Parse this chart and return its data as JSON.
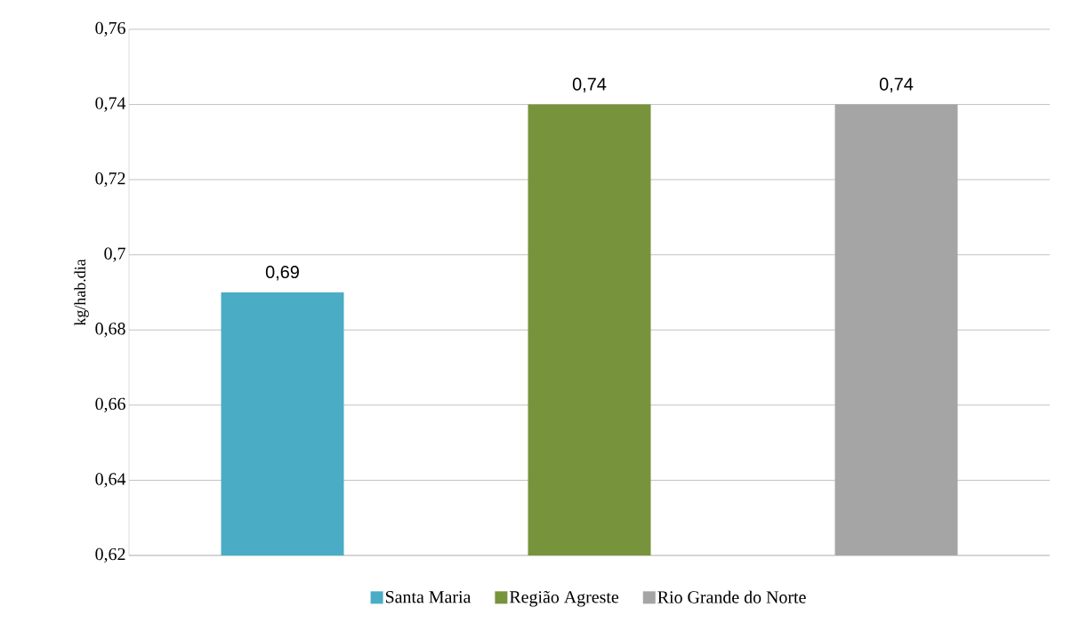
{
  "chart_data": {
    "type": "bar",
    "ylabel": "kg/hab.dia",
    "categories": [
      null,
      null,
      null
    ],
    "series": [
      {
        "name": "Santa Maria",
        "color": "#4bacc6",
        "values": [
          0.69,
          null,
          null
        ],
        "value_labels": [
          "0,69",
          null,
          null
        ]
      },
      {
        "name": "Região Agreste",
        "color": "#77933c",
        "values": [
          null,
          0.74,
          null
        ],
        "value_labels": [
          null,
          "0,74",
          null
        ]
      },
      {
        "name": "Rio Grande do Norte",
        "color": "#a5a5a5",
        "values": [
          null,
          null,
          0.74
        ],
        "value_labels": [
          null,
          null,
          "0,74"
        ]
      }
    ],
    "ylim": [
      0.62,
      0.76
    ],
    "yticks": [
      {
        "value": 0.62,
        "label": "0,62"
      },
      {
        "value": 0.64,
        "label": "0,64"
      },
      {
        "value": 0.66,
        "label": "0,66"
      },
      {
        "value": 0.68,
        "label": "0,68"
      },
      {
        "value": 0.7,
        "label": "0,7"
      },
      {
        "value": 0.72,
        "label": "0,72"
      },
      {
        "value": 0.74,
        "label": "0,74"
      },
      {
        "value": 0.76,
        "label": "0,76"
      }
    ],
    "grid": "y",
    "legend": "bottom"
  }
}
